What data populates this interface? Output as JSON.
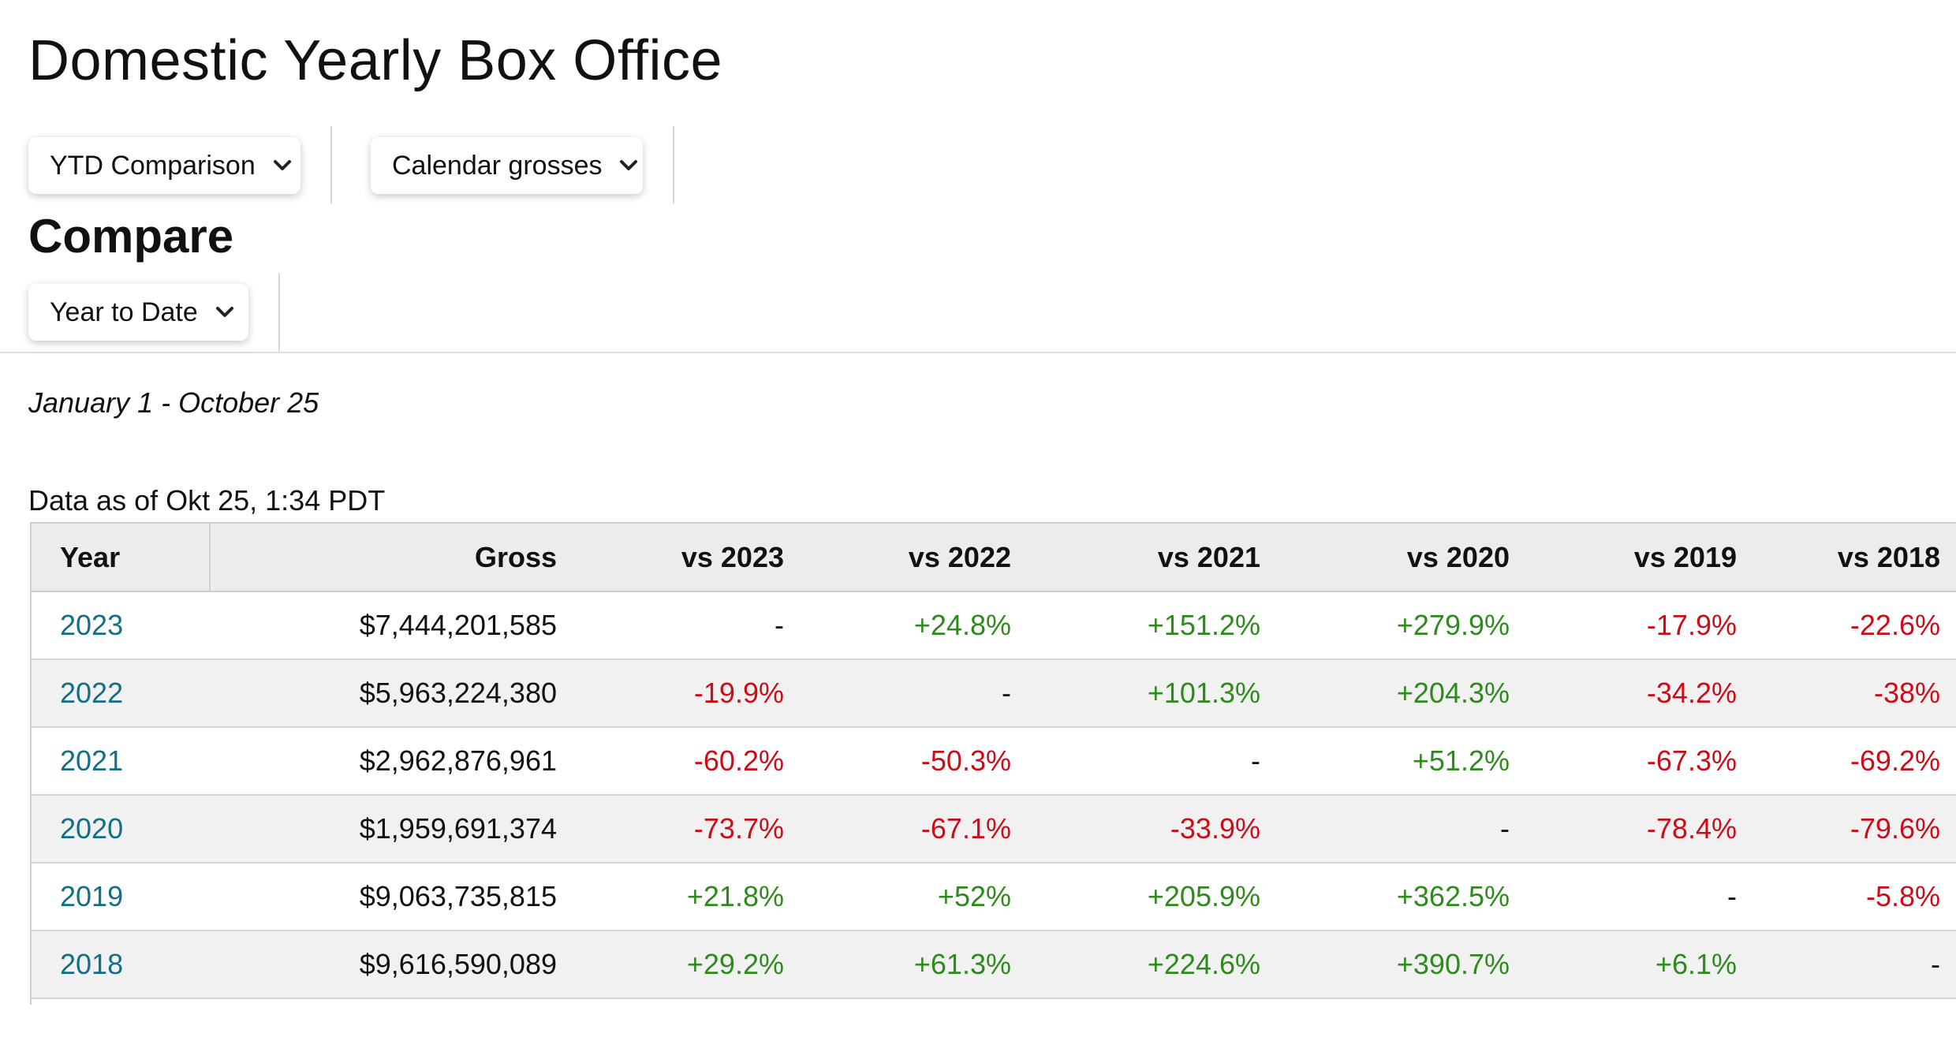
{
  "page": {
    "title": "Domestic Yearly Box Office",
    "compare_heading": "Compare",
    "date_range": "January 1 - October 25",
    "data_as_of": "Data as of Okt 25, 1:34 PDT"
  },
  "filters": {
    "mode": "YTD Comparison",
    "grosses": "Calendar grosses",
    "compare": "Year to Date"
  },
  "table": {
    "headers": [
      "Year",
      "Gross",
      "vs 2023",
      "vs 2022",
      "vs 2021",
      "vs 2020",
      "vs 2019",
      "vs 2018"
    ],
    "rows": [
      {
        "year": "2023",
        "gross": "$7,444,201,585",
        "vs2023": "-",
        "vs2022": "+24.8%",
        "vs2021": "+151.2%",
        "vs2020": "+279.9%",
        "vs2019": "-17.9%",
        "vs2018": "-22.6%"
      },
      {
        "year": "2022",
        "gross": "$5,963,224,380",
        "vs2023": "-19.9%",
        "vs2022": "-",
        "vs2021": "+101.3%",
        "vs2020": "+204.3%",
        "vs2019": "-34.2%",
        "vs2018": "-38%"
      },
      {
        "year": "2021",
        "gross": "$2,962,876,961",
        "vs2023": "-60.2%",
        "vs2022": "-50.3%",
        "vs2021": "-",
        "vs2020": "+51.2%",
        "vs2019": "-67.3%",
        "vs2018": "-69.2%"
      },
      {
        "year": "2020",
        "gross": "$1,959,691,374",
        "vs2023": "-73.7%",
        "vs2022": "-67.1%",
        "vs2021": "-33.9%",
        "vs2020": "-",
        "vs2019": "-78.4%",
        "vs2018": "-79.6%"
      },
      {
        "year": "2019",
        "gross": "$9,063,735,815",
        "vs2023": "+21.8%",
        "vs2022": "+52%",
        "vs2021": "+205.9%",
        "vs2020": "+362.5%",
        "vs2019": "-",
        "vs2018": "-5.8%"
      },
      {
        "year": "2018",
        "gross": "$9,616,590,089",
        "vs2023": "+29.2%",
        "vs2022": "+61.3%",
        "vs2021": "+224.6%",
        "vs2020": "+390.7%",
        "vs2019": "+6.1%",
        "vs2018": "-"
      }
    ]
  },
  "colors": {
    "positive": "#2f8a1e",
    "negative": "#cc0c18",
    "year_link": "#136f86"
  }
}
